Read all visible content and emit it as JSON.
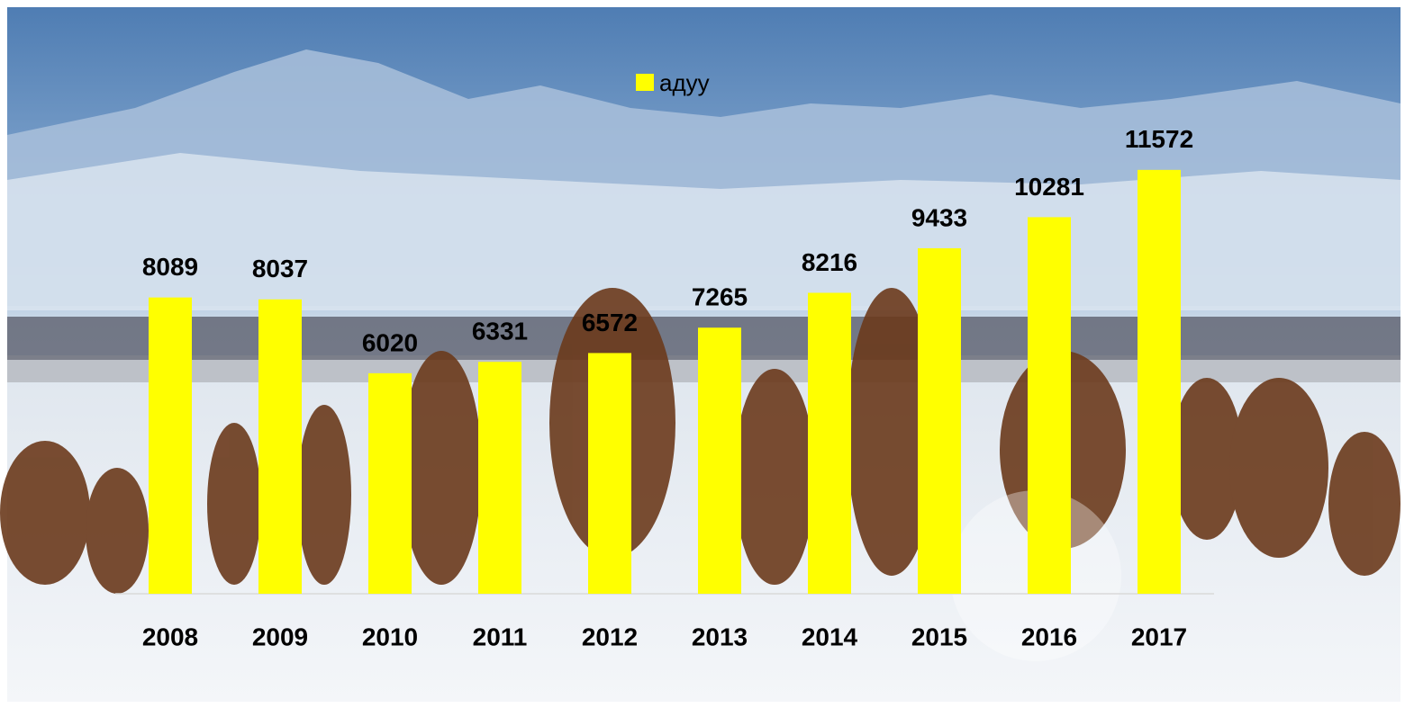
{
  "chart_data": {
    "type": "bar",
    "categories": [
      "2008",
      "2009",
      "2010",
      "2011",
      "2012",
      "2013",
      "2014",
      "2015",
      "2016",
      "2017"
    ],
    "series": [
      {
        "name": "адуу",
        "color": "#ffff00",
        "values": [
          8089,
          8037,
          6020,
          6331,
          6572,
          7265,
          8216,
          9433,
          10281,
          11572
        ]
      }
    ],
    "ylim": [
      0,
      14000
    ],
    "grid": false,
    "legend": "top"
  }
}
